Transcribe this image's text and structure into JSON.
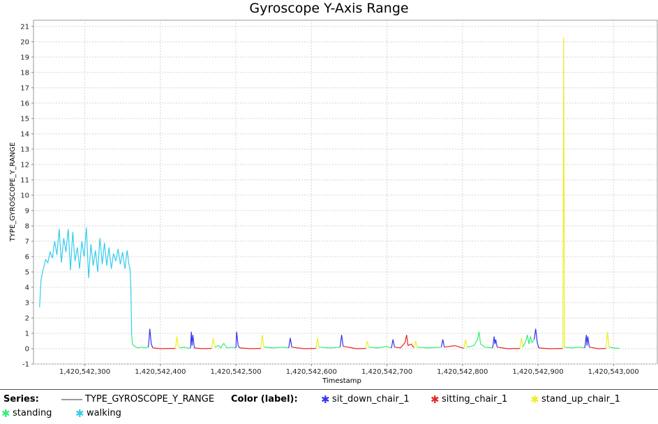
{
  "chart_data": {
    "type": "line",
    "title": "Gyroscope Y-Axis Range",
    "xlabel": "Timestamp",
    "ylabel": "TYPE_GYROSCOPE_Y_RANGE",
    "xlim": [
      1420542232,
      1420543058
    ],
    "ylim": [
      -1,
      21.4
    ],
    "grid": true,
    "x_ticks": [
      1420542300,
      1420542400,
      1420542500,
      1420542600,
      1420542700,
      1420542800,
      1420542900,
      1420543000
    ],
    "x_tick_labels": [
      "1,420,542,300",
      "1,420,542,400",
      "1,420,542,500",
      "1,420,542,600",
      "1,420,542,700",
      "1,420,542,800",
      "1,420,542,900",
      "1,420,543,000"
    ],
    "y_ticks": [
      -1,
      0,
      1,
      2,
      3,
      4,
      5,
      6,
      7,
      8,
      9,
      10,
      11,
      12,
      13,
      14,
      15,
      16,
      17,
      18,
      19,
      20,
      21
    ],
    "y_tick_labels": [
      "-1",
      "0",
      "1",
      "2",
      "3",
      "4",
      "5",
      "6",
      "7",
      "8",
      "9",
      "10",
      "11",
      "12",
      "13",
      "14",
      "15",
      "16",
      "17",
      "18",
      "19",
      "20",
      "21"
    ],
    "series_name": "TYPE_GYROSCOPE_Y_RANGE",
    "label_colors": {
      "sit_down_chair_1": "#3333ee",
      "sitting_chair_1": "#ee2222",
      "stand_up_chair_1": "#eeee22",
      "standing": "#33ee77",
      "walking": "#33ccee"
    },
    "segments": [
      {
        "label": "walking",
        "points": [
          [
            1420542240,
            2.7
          ],
          [
            1420542242,
            4.5
          ],
          [
            1420542245,
            5.2
          ],
          [
            1420542248,
            5.8
          ],
          [
            1420542251,
            5.6
          ],
          [
            1420542254,
            6.3
          ],
          [
            1420542257,
            5.9
          ],
          [
            1420542260,
            7.0
          ],
          [
            1420542263,
            6.1
          ],
          [
            1420542266,
            7.8
          ],
          [
            1420542269,
            5.6
          ],
          [
            1420542272,
            7.2
          ],
          [
            1420542275,
            6.3
          ],
          [
            1420542278,
            7.8
          ],
          [
            1420542281,
            5.1
          ],
          [
            1420542284,
            7.6
          ],
          [
            1420542287,
            5.7
          ],
          [
            1420542290,
            6.6
          ],
          [
            1420542293,
            5.2
          ],
          [
            1420542296,
            7.0
          ],
          [
            1420542299,
            6.0
          ],
          [
            1420542302,
            7.9
          ],
          [
            1420542305,
            4.6
          ],
          [
            1420542308,
            6.8
          ],
          [
            1420542311,
            5.4
          ],
          [
            1420542314,
            6.4
          ],
          [
            1420542317,
            5.0
          ],
          [
            1420542320,
            7.2
          ],
          [
            1420542323,
            5.5
          ],
          [
            1420542326,
            6.9
          ],
          [
            1420542329,
            5.4
          ],
          [
            1420542332,
            6.6
          ],
          [
            1420542335,
            5.2
          ],
          [
            1420542338,
            6.2
          ],
          [
            1420542341,
            5.7
          ],
          [
            1420542344,
            6.5
          ],
          [
            1420542347,
            5.5
          ],
          [
            1420542350,
            6.3
          ],
          [
            1420542353,
            5.2
          ],
          [
            1420542356,
            6.4
          ],
          [
            1420542358,
            5.6
          ],
          [
            1420542360,
            5.1
          ],
          [
            1420542361,
            3.8
          ],
          [
            1420542362,
            0.9
          ]
        ]
      },
      {
        "label": "standing",
        "points": [
          [
            1420542362,
            0.9
          ],
          [
            1420542363,
            0.3
          ],
          [
            1420542366,
            0.15
          ],
          [
            1420542370,
            0.05
          ],
          [
            1420542375,
            0.1
          ],
          [
            1420542380,
            0.05
          ],
          [
            1420542384,
            0.1
          ]
        ]
      },
      {
        "label": "sit_down_chair_1",
        "points": [
          [
            1420542384,
            0.1
          ],
          [
            1420542385,
            0.6
          ],
          [
            1420542386,
            1.3
          ],
          [
            1420542388,
            0.3
          ],
          [
            1420542390,
            0.05
          ]
        ]
      },
      {
        "label": "sitting_chair_1",
        "points": [
          [
            1420542390,
            0.05
          ],
          [
            1420542400,
            0.0
          ],
          [
            1420542412,
            0.02
          ],
          [
            1420542420,
            0.02
          ]
        ]
      },
      {
        "label": "stand_up_chair_1",
        "points": [
          [
            1420542420,
            0.02
          ],
          [
            1420542422,
            0.8
          ],
          [
            1420542424,
            0.15
          ],
          [
            1420542426,
            0.05
          ]
        ]
      },
      {
        "label": "standing",
        "points": [
          [
            1420542426,
            0.05
          ],
          [
            1420542432,
            0.1
          ],
          [
            1420542438,
            0.02
          ],
          [
            1420542440,
            0.05
          ]
        ]
      },
      {
        "label": "sit_down_chair_1",
        "points": [
          [
            1420542440,
            0.05
          ],
          [
            1420542441,
            1.1
          ],
          [
            1420542442,
            0.2
          ],
          [
            1420542443,
            0.9
          ],
          [
            1420542445,
            0.05
          ]
        ]
      },
      {
        "label": "sitting_chair_1",
        "points": [
          [
            1420542445,
            0.05
          ],
          [
            1420542455,
            0.0
          ],
          [
            1420542468,
            0.02
          ]
        ]
      },
      {
        "label": "stand_up_chair_1",
        "points": [
          [
            1420542468,
            0.02
          ],
          [
            1420542470,
            0.7
          ],
          [
            1420542472,
            0.1
          ]
        ]
      },
      {
        "label": "standing",
        "points": [
          [
            1420542472,
            0.1
          ],
          [
            1420542477,
            0.2
          ],
          [
            1420542480,
            0.05
          ],
          [
            1420542484,
            0.35
          ],
          [
            1420542488,
            0.05
          ],
          [
            1420542495,
            0.1
          ],
          [
            1420542500,
            0.05
          ]
        ]
      },
      {
        "label": "sit_down_chair_1",
        "points": [
          [
            1420542500,
            0.05
          ],
          [
            1420542501,
            1.1
          ],
          [
            1420542503,
            0.2
          ],
          [
            1420542505,
            0.05
          ]
        ]
      },
      {
        "label": "sitting_chair_1",
        "points": [
          [
            1420542505,
            0.05
          ],
          [
            1420542520,
            0.0
          ],
          [
            1420542533,
            0.02
          ]
        ]
      },
      {
        "label": "stand_up_chair_1",
        "points": [
          [
            1420542533,
            0.02
          ],
          [
            1420542535,
            0.9
          ],
          [
            1420542537,
            0.1
          ]
        ]
      },
      {
        "label": "standing",
        "points": [
          [
            1420542537,
            0.1
          ],
          [
            1420542550,
            0.05
          ],
          [
            1420542562,
            0.1
          ],
          [
            1420542570,
            0.05
          ]
        ]
      },
      {
        "label": "sit_down_chair_1",
        "points": [
          [
            1420542570,
            0.05
          ],
          [
            1420542572,
            0.7
          ],
          [
            1420542574,
            0.1
          ]
        ]
      },
      {
        "label": "sitting_chair_1",
        "points": [
          [
            1420542574,
            0.1
          ],
          [
            1420542590,
            0.0
          ],
          [
            1420542606,
            0.02
          ]
        ]
      },
      {
        "label": "stand_up_chair_1",
        "points": [
          [
            1420542606,
            0.02
          ],
          [
            1420542608,
            0.7
          ],
          [
            1420542610,
            0.1
          ]
        ]
      },
      {
        "label": "standing",
        "points": [
          [
            1420542610,
            0.1
          ],
          [
            1420542625,
            0.05
          ],
          [
            1420542638,
            0.1
          ]
        ]
      },
      {
        "label": "sit_down_chair_1",
        "points": [
          [
            1420542638,
            0.1
          ],
          [
            1420542640,
            0.9
          ],
          [
            1420542642,
            0.15
          ]
        ]
      },
      {
        "label": "sitting_chair_1",
        "points": [
          [
            1420542642,
            0.15
          ],
          [
            1420542660,
            0.0
          ],
          [
            1420542672,
            0.02
          ]
        ]
      },
      {
        "label": "stand_up_chair_1",
        "points": [
          [
            1420542672,
            0.02
          ],
          [
            1420542674,
            0.5
          ],
          [
            1420542676,
            0.1
          ]
        ]
      },
      {
        "label": "standing",
        "points": [
          [
            1420542676,
            0.1
          ],
          [
            1420542688,
            0.05
          ],
          [
            1420542700,
            0.15
          ],
          [
            1420542706,
            0.05
          ]
        ]
      },
      {
        "label": "sit_down_chair_1",
        "points": [
          [
            1420542706,
            0.05
          ],
          [
            1420542708,
            0.6
          ],
          [
            1420542710,
            0.1
          ]
        ]
      },
      {
        "label": "sitting_chair_1",
        "points": [
          [
            1420542710,
            0.1
          ],
          [
            1420542718,
            0.05
          ],
          [
            1420542724,
            0.4
          ],
          [
            1420542726,
            0.9
          ],
          [
            1420542728,
            0.2
          ],
          [
            1420542732,
            0.3
          ],
          [
            1420542736,
            0.05
          ]
        ]
      },
      {
        "label": "stand_up_chair_1",
        "points": [
          [
            1420542736,
            0.05
          ],
          [
            1420542738,
            0.5
          ],
          [
            1420542740,
            0.1
          ]
        ]
      },
      {
        "label": "standing",
        "points": [
          [
            1420542740,
            0.1
          ],
          [
            1420542755,
            0.05
          ],
          [
            1420542772,
            0.1
          ]
        ]
      },
      {
        "label": "sit_down_chair_1",
        "points": [
          [
            1420542772,
            0.1
          ],
          [
            1420542774,
            0.6
          ],
          [
            1420542776,
            0.1
          ]
        ]
      },
      {
        "label": "sitting_chair_1",
        "points": [
          [
            1420542776,
            0.1
          ],
          [
            1420542790,
            0.2
          ],
          [
            1420542802,
            0.02
          ]
        ]
      },
      {
        "label": "stand_up_chair_1",
        "points": [
          [
            1420542802,
            0.02
          ],
          [
            1420542804,
            0.6
          ],
          [
            1420542806,
            0.1
          ]
        ]
      },
      {
        "label": "standing",
        "points": [
          [
            1420542806,
            0.1
          ],
          [
            1420542815,
            0.2
          ],
          [
            1420542820,
            0.6
          ],
          [
            1420542822,
            1.1
          ],
          [
            1420542824,
            0.3
          ],
          [
            1420542830,
            0.1
          ],
          [
            1420542840,
            0.05
          ]
        ]
      },
      {
        "label": "sit_down_chair_1",
        "points": [
          [
            1420542840,
            0.05
          ],
          [
            1420542842,
            0.8
          ],
          [
            1420542843,
            0.3
          ],
          [
            1420542844,
            0.6
          ],
          [
            1420542846,
            0.1
          ]
        ]
      },
      {
        "label": "sitting_chair_1",
        "points": [
          [
            1420542846,
            0.1
          ],
          [
            1420542860,
            0.0
          ],
          [
            1420542876,
            0.02
          ]
        ]
      },
      {
        "label": "stand_up_chair_1",
        "points": [
          [
            1420542876,
            0.02
          ],
          [
            1420542878,
            0.7
          ],
          [
            1420542880,
            0.1
          ]
        ]
      },
      {
        "label": "standing",
        "points": [
          [
            1420542880,
            0.1
          ],
          [
            1420542884,
            0.5
          ],
          [
            1420542886,
            0.9
          ],
          [
            1420542888,
            0.3
          ],
          [
            1420542890,
            0.8
          ],
          [
            1420542892,
            0.4
          ],
          [
            1420542895,
            0.6
          ]
        ]
      },
      {
        "label": "sit_down_chair_1",
        "points": [
          [
            1420542895,
            0.6
          ],
          [
            1420542897,
            1.3
          ],
          [
            1420542899,
            0.4
          ],
          [
            1420542901,
            0.05
          ]
        ]
      },
      {
        "label": "sitting_chair_1",
        "points": [
          [
            1420542901,
            0.05
          ],
          [
            1420542915,
            0.0
          ],
          [
            1420542933,
            0.02
          ]
        ]
      },
      {
        "label": "stand_up_chair_1",
        "points": [
          [
            1420542933,
            0.02
          ],
          [
            1420542934,
            20.3
          ],
          [
            1420542935,
            0.1
          ]
        ]
      },
      {
        "label": "standing",
        "points": [
          [
            1420542935,
            0.1
          ],
          [
            1420542945,
            0.05
          ],
          [
            1420542955,
            0.1
          ],
          [
            1420542962,
            0.05
          ]
        ]
      },
      {
        "label": "sit_down_chair_1",
        "points": [
          [
            1420542962,
            0.05
          ],
          [
            1420542964,
            0.9
          ],
          [
            1420542965,
            0.2
          ],
          [
            1420542966,
            0.8
          ],
          [
            1420542968,
            0.1
          ]
        ]
      },
      {
        "label": "sitting_chair_1",
        "points": [
          [
            1420542968,
            0.1
          ],
          [
            1420542980,
            0.0
          ],
          [
            1420542990,
            0.02
          ]
        ]
      },
      {
        "label": "stand_up_chair_1",
        "points": [
          [
            1420542990,
            0.02
          ],
          [
            1420542992,
            1.1
          ],
          [
            1420542994,
            0.1
          ]
        ]
      },
      {
        "label": "standing",
        "points": [
          [
            1420542994,
            0.1
          ],
          [
            1420543000,
            0.05
          ],
          [
            1420543008,
            0.02
          ]
        ]
      }
    ]
  },
  "legend": {
    "series_heading": "Series:",
    "series_name": "TYPE_GYROSCOPE_Y_RANGE",
    "color_heading": "Color (label):",
    "items": [
      {
        "label": "sit_down_chair_1",
        "color": "#3333ee"
      },
      {
        "label": "sitting_chair_1",
        "color": "#ee2222"
      },
      {
        "label": "stand_up_chair_1",
        "color": "#eeee22"
      },
      {
        "label": "standing",
        "color": "#33ee77"
      },
      {
        "label": "walking",
        "color": "#33ccee"
      }
    ]
  }
}
